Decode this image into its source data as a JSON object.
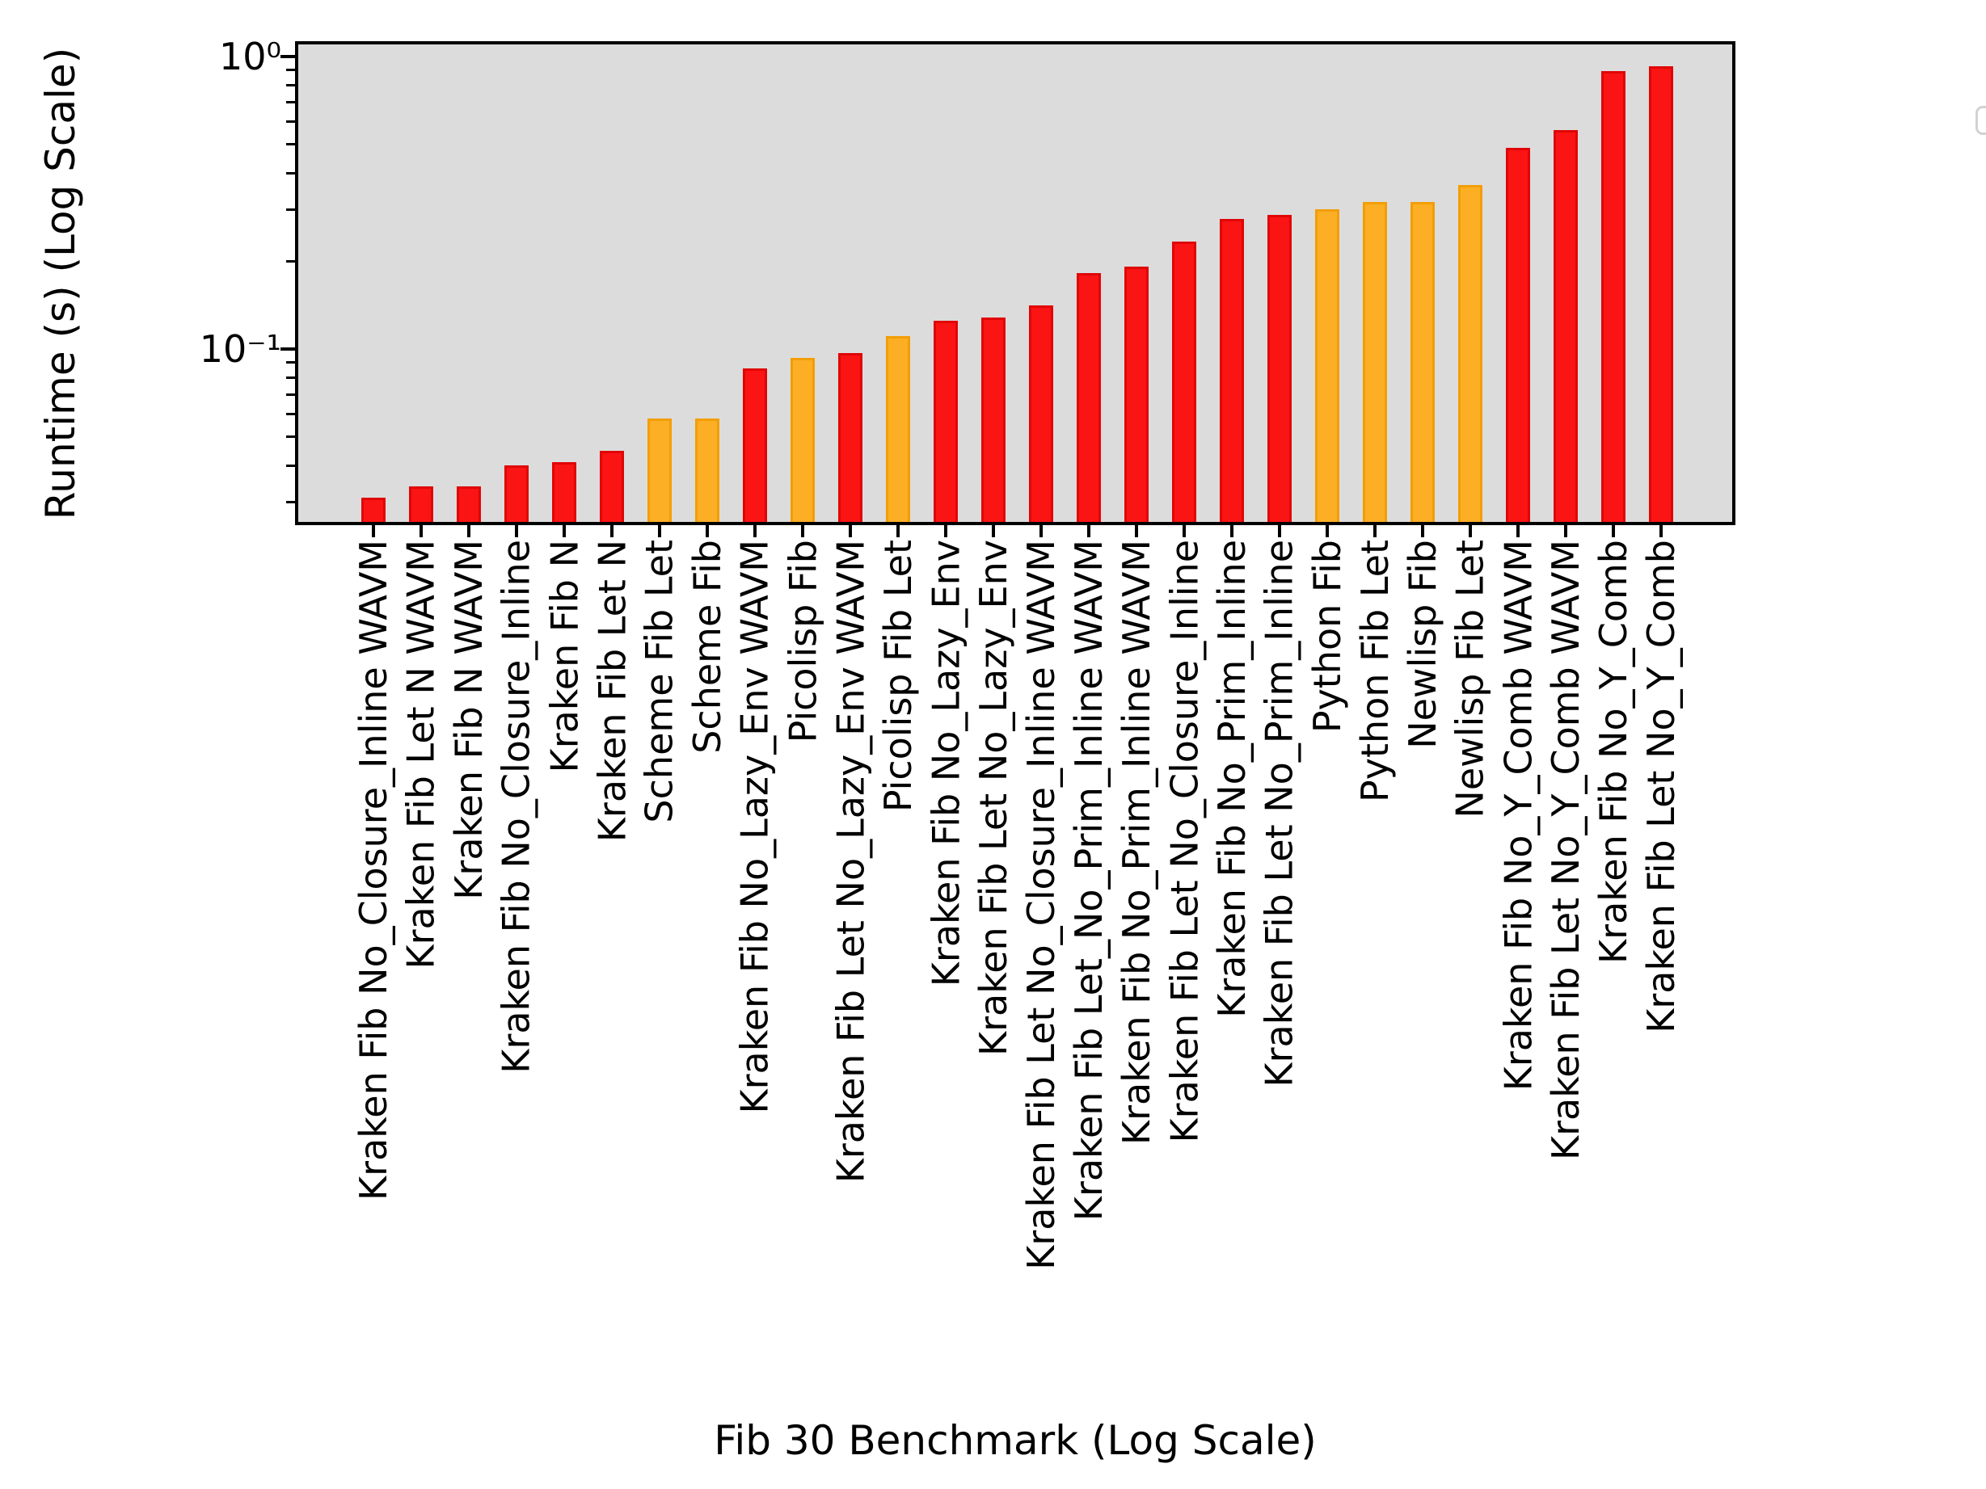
{
  "figure": {
    "background": "#ffffff",
    "plot_background": "#dcdcdc",
    "axis_color": "#000000"
  },
  "legend": {
    "present": true,
    "entries": []
  },
  "chart_data": {
    "type": "bar",
    "title": "",
    "xlabel": "Fib 30 Benchmark (Log Scale)",
    "ylabel": "Runtime (s) (Log Scale)",
    "y_scale": "log",
    "ylim": [
      0.0256,
      1.1
    ],
    "grid": false,
    "legend_position": "upper right",
    "y_major_ticks": [
      {
        "value": 1.0,
        "label": "10⁰"
      },
      {
        "value": 0.1,
        "label": "10⁻¹"
      }
    ],
    "y_minor_ticks": [
      0.9,
      0.8,
      0.7,
      0.6,
      0.5,
      0.4,
      0.3,
      0.2,
      0.09,
      0.08,
      0.07,
      0.06,
      0.05,
      0.04,
      0.03
    ],
    "categories": [
      "Kraken Fib No_Closure_Inline WAVM",
      "Kraken Fib Let N WAVM",
      "Kraken Fib N WAVM",
      "Kraken Fib No_Closure_Inline",
      "Kraken Fib N",
      "Kraken Fib Let N",
      "Scheme Fib Let",
      "Scheme Fib",
      "Kraken Fib No_Lazy_Env WAVM",
      "Picolisp Fib",
      "Kraken Fib Let No_Lazy_Env WAVM",
      "Picolisp Fib Let",
      "Kraken Fib No_Lazy_Env",
      "Kraken Fib Let No_Lazy_Env",
      "Kraken Fib Let No_Closure_Inline WAVM",
      "Kraken Fib Let_No_Prim_Inline WAVM",
      "Kraken Fib No_Prim_Inline WAVM",
      "Kraken Fib Let No_Closure_Inline",
      "Kraken Fib No_Prim_Inline",
      "Kraken Fib Let No_Prim_Inline",
      "Python Fib",
      "Python Fib Let",
      "Newlisp Fib",
      "Newlisp Fib Let",
      "Kraken Fib No_Y_Comb WAVM",
      "Kraken Fib Let No_Y_Comb WAVM",
      "Kraken Fib No_Y_Comb",
      "Kraken Fib Let No_Y_Comb"
    ],
    "values": [
      0.031,
      0.034,
      0.034,
      0.04,
      0.041,
      0.045,
      0.058,
      0.058,
      0.086,
      0.093,
      0.097,
      0.111,
      0.125,
      0.128,
      0.141,
      0.182,
      0.191,
      0.233,
      0.279,
      0.288,
      0.3,
      0.318,
      0.319,
      0.364,
      0.486,
      0.561,
      0.89,
      0.925
    ],
    "bar_colors": [
      "red",
      "red",
      "red",
      "red",
      "red",
      "red",
      "orange",
      "orange",
      "red",
      "orange",
      "red",
      "orange",
      "red",
      "red",
      "red",
      "red",
      "red",
      "red",
      "red",
      "red",
      "orange",
      "orange",
      "orange",
      "orange",
      "red",
      "red",
      "red",
      "red"
    ],
    "color_map": {
      "red": {
        "fill": "#fb1414",
        "edge": "#e00606"
      },
      "orange": {
        "fill": "#fcae24",
        "edge": "#f29e05"
      }
    }
  }
}
